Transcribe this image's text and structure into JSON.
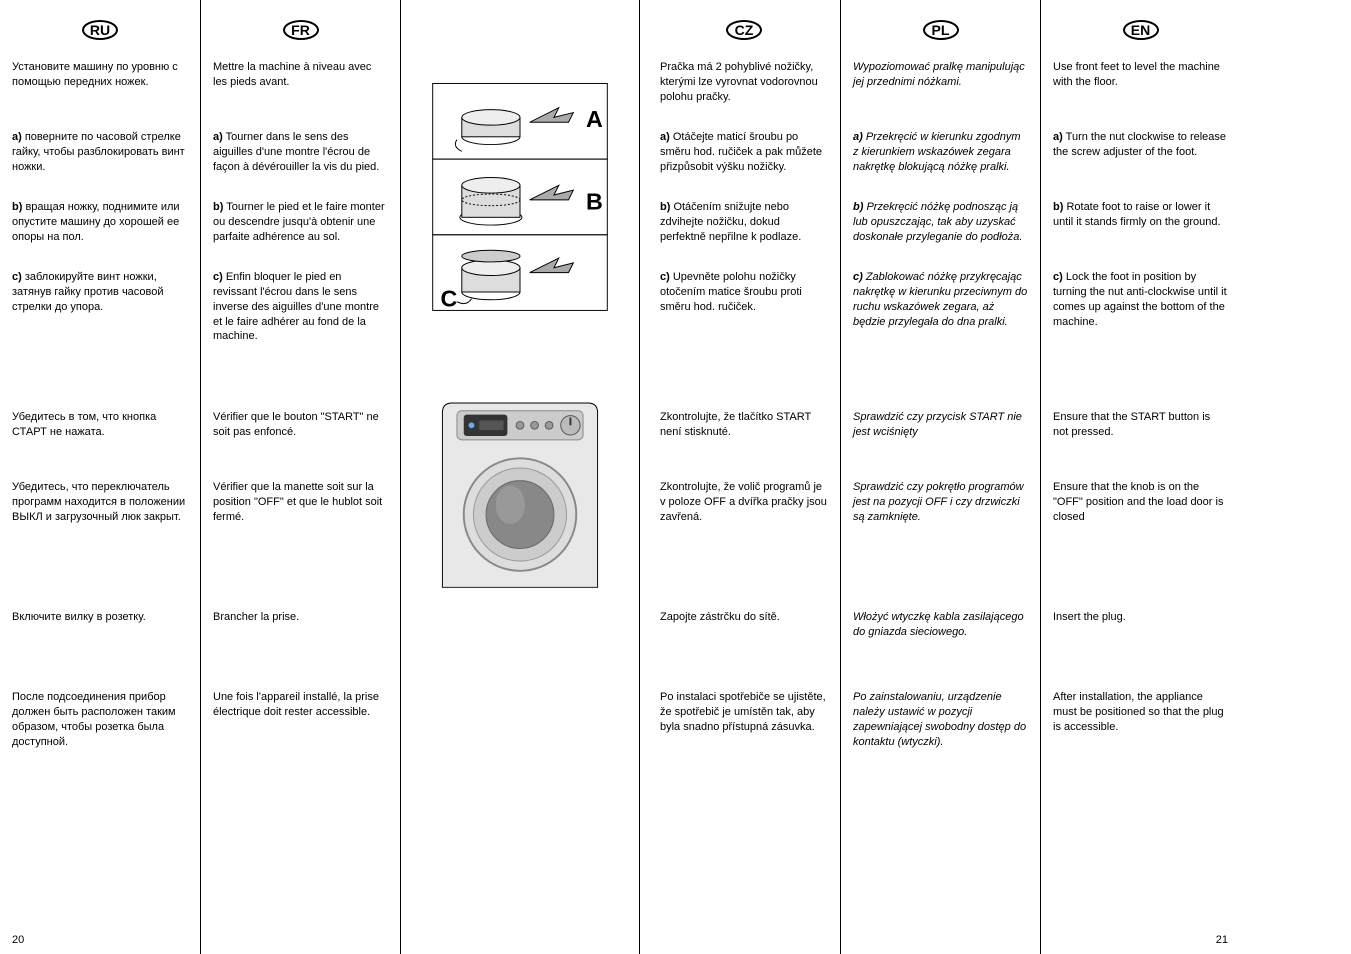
{
  "lang_labels": {
    "ru": "RU",
    "fr": "FR",
    "cz": "CZ",
    "pl": "PL",
    "en": "EN"
  },
  "page_left": "20",
  "page_right": "21",
  "fig_labels": {
    "a": "A",
    "b": "B",
    "c": "C"
  },
  "rows": [
    {
      "ru": "Установите машину по уровню с помощью передних ножек.",
      "fr": "Mettre la machine à niveau avec les pieds avant.",
      "cz": "Pračka má 2 pohyblivé nožičky, kterými lze vyrovnat vodorovnou polohu pračky.",
      "pl": "Wypoziomować pralkę manipulując jej przednimi nóżkami.",
      "en": "Use front feet to level the machine with the floor."
    },
    {
      "ru": "<strong>a)</strong> поверните по часовой стрелке гайку, чтобы разблокировать винт ножки.",
      "fr": "<strong>a)</strong> Tourner dans le sens des aiguilles d'une montre l'écrou de façon à dévérouiller la vis du pied.",
      "cz": "<strong>a)</strong> Otáčejte maticí šroubu po směru hod. ručiček a pak můžete přizpůsobit výšku nožičky.",
      "pl": "<strong>a)</strong> Przekręcić w kierunku zgodnym z kierunkiem wskazówek zegara nakrętkę blokującą nóżkę pralki.",
      "en": "<strong>a)</strong> Turn the nut clockwise to release the screw adjuster of the foot."
    },
    {
      "ru": "<strong>b)</strong> вращая ножку, поднимите или опустите машину до хорошей ее опоры на пол.",
      "fr": "<strong>b)</strong> Tourner le pied et le faire monter ou descendre jusqu'à obtenir une parfaite adhérence au sol.",
      "cz": "<strong>b)</strong> Otáčením snižujte nebo zdvihejte nožičku, dokud perfektně nepřilne k podlaze.",
      "pl": "<strong>b)</strong> Przekręcić nóżkę podnosząc ją lub opuszczając, tak aby uzyskać doskonałe przyleganie do podłoża.",
      "en": "<strong>b)</strong> Rotate foot to raise or lower it until it stands firmly on the ground."
    },
    {
      "ru": "<strong>c)</strong> заблокируйте винт ножки, затянув гайку против часовой стрелки до упора.",
      "fr": "<strong>c)</strong> Enfin bloquer le pied en revissant l'écrou dans le sens inverse des aiguilles d'une montre et le faire adhérer au fond de la machine.",
      "cz": "<strong>c)</strong> Upevněte polohu nožičky otočením matice šroubu proti směru hod. ručiček.",
      "pl": "<strong>c)</strong> Zablokować nóżkę przykręcając nakrętkę w kierunku przeciwnym do ruchu wskazówek zegara, aż będzie przylegała do dna pralki.",
      "en": "<strong>c)</strong> Lock the foot in position by turning the nut anti-clockwise until it comes up against the bottom of the machine."
    },
    {
      "ru": "Убедитесь в том, что кнопка СТАРТ не нажата.",
      "fr": "Vérifier que le bouton \"START\" ne soit pas enfoncé.",
      "cz": "Zkontrolujte, že tlačítko START není stisknuté.",
      "pl": "Sprawdzić czy przycisk START nie jest wciśnięty",
      "en": "Ensure that the START button is not pressed."
    },
    {
      "ru": "Убедитесь, что переключатель программ находится в положении ВЫКЛ и загрузочный люк закрыт.",
      "fr": "Vérifier que la manette soit sur la position \"OFF\" et que le hublot soit fermé.",
      "cz": "Zkontrolujte, že volič programů je v poloze OFF a dvířka pračky jsou zavřená.",
      "pl": "Sprawdzić czy pokrętło programów jest na pozycji OFF i czy drzwiczki są zamknięte.",
      "en": "Ensure that the knob is on the \"OFF\" position and the load door is closed"
    },
    {
      "ru": "Включите вилку в розетку.",
      "fr": "Brancher la prise.",
      "cz": "Zapojte zástrčku do sítě.",
      "pl": "Włożyć wtyczkę kabla zasilającego do gniazda sieciowego.",
      "en": "Insert the plug."
    },
    {
      "ru": "После подсоединения прибор должен быть расположен таким образом, чтобы розетка была доступной.",
      "fr": "Une fois l'appareil installé, la prise électrique doit rester accessible.",
      "cz": "Po instalaci spotřebiče se ujistěte, že spotřebič je umístěn tak, aby byla snadno přístupná zásuvka.",
      "pl": "Po zainstalowaniu, urządzenie należy ustawić w pozycji zapewniającej swobodny dostęp do kontaktu (wtyczki).",
      "en": "After installation, the appliance must be positioned so that the plug is accessible."
    }
  ]
}
